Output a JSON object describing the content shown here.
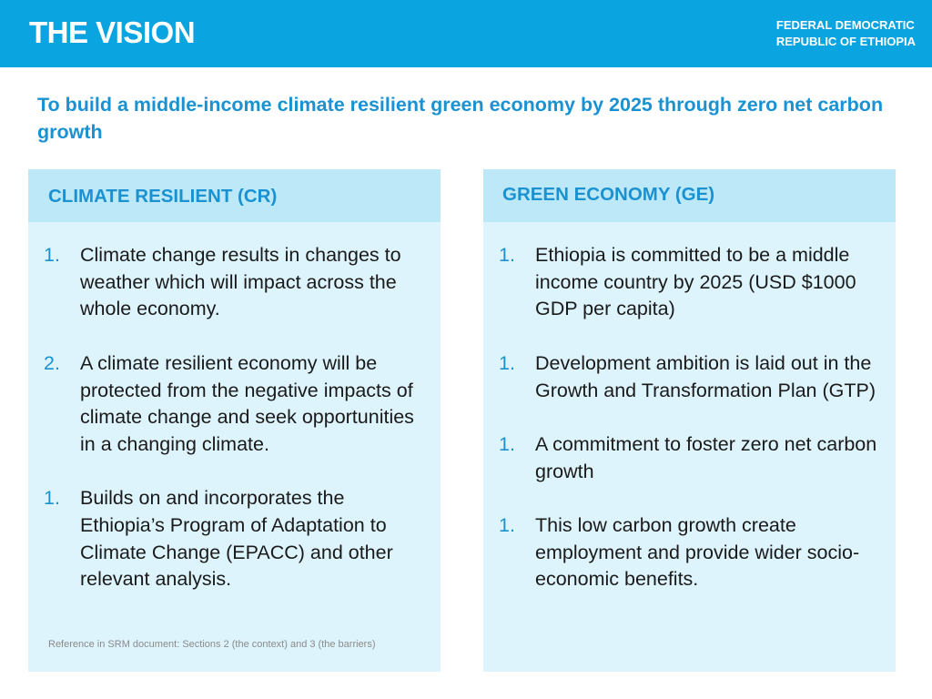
{
  "header": {
    "title": "THE VISION",
    "org_line1": "FEDERAL DEMOCRATIC",
    "org_line2": "REPUBLIC OF ETHIOPIA"
  },
  "vision_text": "To build a middle-income climate resilient green economy by 2025 through zero net carbon growth",
  "left_panel": {
    "title": "CLIMATE RESILIENT (CR)",
    "items": [
      {
        "num": "1.",
        "text": "Climate change results in changes to weather which will impact across the whole economy."
      },
      {
        "num": "2.",
        "text": "A climate resilient economy will be protected from the negative impacts of climate change and seek opportunities in a changing climate."
      },
      {
        "num": "1.",
        "text": "Builds on and incorporates the Ethiopia’s Program of Adaptation to Climate Change (EPACC) and other relevant analysis."
      }
    ],
    "reference": "Reference in SRM document: Sections 2 (the context) and 3 (the barriers)"
  },
  "right_panel": {
    "title": "GREEN ECONOMY (GE)",
    "items": [
      {
        "num": "1.",
        "text": "Ethiopia is committed to be a middle income country by 2025 (USD $1000 GDP per capita)"
      },
      {
        "num": "1.",
        "text": "Development ambition is laid out in the Growth and Transformation Plan (GTP)"
      },
      {
        "num": "1.",
        "text": "A commitment to foster zero net carbon growth"
      },
      {
        "num": "1.",
        "text": "This low carbon growth create employment and provide wider socio-economic benefits."
      }
    ]
  },
  "colors": {
    "header_bg": "#0aa4e0",
    "accent_text": "#1a92d2",
    "panel_head_bg": "#bde8f8",
    "panel_bg": "#def4fc"
  }
}
